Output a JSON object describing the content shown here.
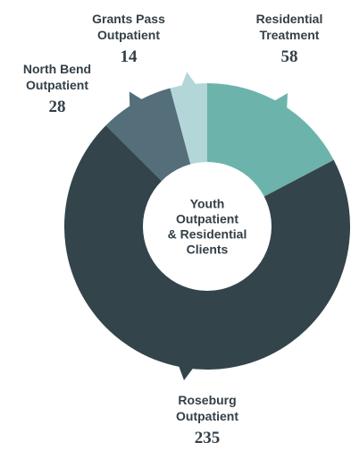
{
  "chart_data": {
    "type": "pie",
    "subtype": "donut",
    "center_title_lines": [
      "Youth",
      "Outpatient",
      "& Residential",
      "Clients"
    ],
    "slices": [
      {
        "name_lines": [
          "Residential",
          "Treatment"
        ],
        "value": 58,
        "value_text": "58",
        "color": "#6cb4ab"
      },
      {
        "name_lines": [
          "Roseburg",
          "Outpatient"
        ],
        "value": 235,
        "value_text": "235",
        "color": "#33444b"
      },
      {
        "name_lines": [
          "North Bend",
          "Outpatient"
        ],
        "value": 28,
        "value_text": "28",
        "color": "#546e7a"
      },
      {
        "name_lines": [
          "Grants Pass",
          "Outpatient"
        ],
        "value": 14,
        "value_text": "14",
        "color": "#b3d6d8"
      }
    ]
  }
}
